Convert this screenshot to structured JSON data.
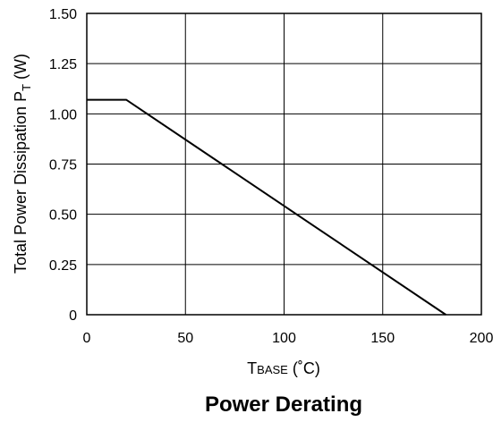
{
  "chart_data": {
    "type": "line",
    "title": "Power Derating",
    "xlabel": {
      "main": "T",
      "sub": "BASE",
      "unit": " (˚C)"
    },
    "ylabel": {
      "main": "Total Power Dissipation P",
      "sub": "T",
      "unit": " (W)"
    },
    "xlim": [
      0,
      200
    ],
    "ylim": [
      0,
      1.5
    ],
    "x_ticks": [
      0,
      50,
      100,
      150,
      200
    ],
    "x_tick_labels": [
      "0",
      "50",
      "100",
      "150",
      "200"
    ],
    "y_ticks": [
      0,
      0.25,
      0.5,
      0.75,
      1.0,
      1.25,
      1.5
    ],
    "y_tick_labels": [
      "0",
      "0.25",
      "0.50",
      "0.75",
      "1.00",
      "1.25",
      "1.50"
    ],
    "grid": true,
    "series": [
      {
        "x": [
          0,
          20,
          182
        ],
        "y": [
          1.07,
          1.07,
          0
        ]
      }
    ],
    "colors": {
      "line": "#000000",
      "grid": "#000000",
      "background": "#ffffff"
    }
  }
}
